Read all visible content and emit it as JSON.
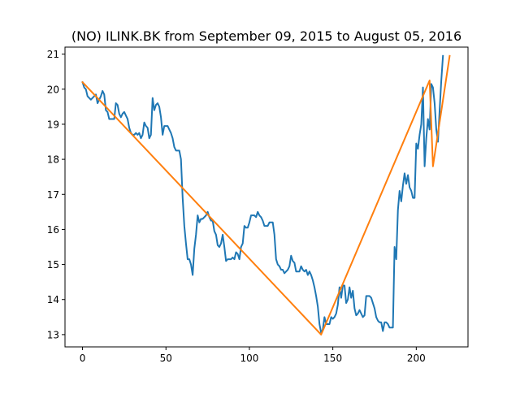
{
  "chart_data": {
    "type": "line",
    "title": "(NO) ILINK.BK from September 09, 2015 to August 05, 2016",
    "xlabel": "",
    "ylabel": "",
    "xlim": [
      -10.5,
      231
    ],
    "ylim": [
      12.65,
      21.2
    ],
    "xticks": [
      0,
      50,
      100,
      150,
      200
    ],
    "yticks": [
      13,
      14,
      15,
      16,
      17,
      18,
      19,
      20,
      21
    ],
    "grid": false,
    "legend": "none",
    "series": [
      {
        "color": "#1f77b4",
        "points": [
          [
            0,
            20.2
          ],
          [
            1,
            20.05
          ],
          [
            2,
            20.0
          ],
          [
            3,
            19.8
          ],
          [
            4,
            19.75
          ],
          [
            5,
            19.7
          ],
          [
            6,
            19.75
          ],
          [
            7,
            19.8
          ],
          [
            8,
            19.85
          ],
          [
            9,
            19.6
          ],
          [
            10,
            19.7
          ],
          [
            11,
            19.8
          ],
          [
            12,
            19.95
          ],
          [
            13,
            19.85
          ],
          [
            14,
            19.4
          ],
          [
            15,
            19.35
          ],
          [
            16,
            19.15
          ],
          [
            17,
            19.15
          ],
          [
            18,
            19.15
          ],
          [
            19,
            19.15
          ],
          [
            20,
            19.6
          ],
          [
            21,
            19.55
          ],
          [
            22,
            19.3
          ],
          [
            23,
            19.2
          ],
          [
            24,
            19.3
          ],
          [
            25,
            19.35
          ],
          [
            26,
            19.25
          ],
          [
            27,
            19.15
          ],
          [
            28,
            18.9
          ],
          [
            29,
            18.75
          ],
          [
            30,
            18.7
          ],
          [
            31,
            18.7
          ],
          [
            32,
            18.75
          ],
          [
            33,
            18.7
          ],
          [
            34,
            18.75
          ],
          [
            35,
            18.6
          ],
          [
            36,
            18.7
          ],
          [
            37,
            19.05
          ],
          [
            38,
            18.95
          ],
          [
            39,
            18.9
          ],
          [
            40,
            18.6
          ],
          [
            41,
            18.7
          ],
          [
            42,
            19.75
          ],
          [
            43,
            19.4
          ],
          [
            44,
            19.55
          ],
          [
            45,
            19.6
          ],
          [
            46,
            19.5
          ],
          [
            47,
            19.2
          ],
          [
            48,
            18.7
          ],
          [
            49,
            18.95
          ],
          [
            50,
            18.95
          ],
          [
            51,
            18.95
          ],
          [
            52,
            18.85
          ],
          [
            53,
            18.75
          ],
          [
            54,
            18.6
          ],
          [
            55,
            18.35
          ],
          [
            56,
            18.25
          ],
          [
            57,
            18.25
          ],
          [
            58,
            18.25
          ],
          [
            59,
            18.0
          ],
          [
            60,
            16.9
          ],
          [
            61,
            16.1
          ],
          [
            62,
            15.6
          ],
          [
            63,
            15.15
          ],
          [
            64,
            15.15
          ],
          [
            65,
            15.0
          ],
          [
            66,
            14.7
          ],
          [
            67,
            15.45
          ],
          [
            68,
            15.85
          ],
          [
            69,
            16.4
          ],
          [
            70,
            16.2
          ],
          [
            71,
            16.3
          ],
          [
            72,
            16.3
          ],
          [
            73,
            16.35
          ],
          [
            74,
            16.4
          ],
          [
            75,
            16.5
          ],
          [
            76,
            16.35
          ],
          [
            77,
            16.25
          ],
          [
            78,
            16.25
          ],
          [
            79,
            15.95
          ],
          [
            80,
            15.85
          ],
          [
            81,
            15.55
          ],
          [
            82,
            15.5
          ],
          [
            83,
            15.6
          ],
          [
            84,
            15.85
          ],
          [
            85,
            15.5
          ],
          [
            86,
            15.1
          ],
          [
            87,
            15.15
          ],
          [
            88,
            15.15
          ],
          [
            89,
            15.15
          ],
          [
            90,
            15.2
          ],
          [
            91,
            15.15
          ],
          [
            92,
            15.35
          ],
          [
            93,
            15.3
          ],
          [
            94,
            15.15
          ],
          [
            95,
            15.5
          ],
          [
            96,
            15.6
          ],
          [
            97,
            16.1
          ],
          [
            98,
            16.05
          ],
          [
            99,
            16.05
          ],
          [
            100,
            16.2
          ],
          [
            101,
            16.4
          ],
          [
            102,
            16.4
          ],
          [
            103,
            16.4
          ],
          [
            104,
            16.35
          ],
          [
            105,
            16.5
          ],
          [
            106,
            16.4
          ],
          [
            107,
            16.35
          ],
          [
            108,
            16.25
          ],
          [
            109,
            16.1
          ],
          [
            110,
            16.1
          ],
          [
            111,
            16.1
          ],
          [
            112,
            16.2
          ],
          [
            113,
            16.2
          ],
          [
            114,
            16.2
          ],
          [
            115,
            15.85
          ],
          [
            116,
            15.15
          ],
          [
            117,
            15.0
          ],
          [
            118,
            14.95
          ],
          [
            119,
            14.85
          ],
          [
            120,
            14.85
          ],
          [
            121,
            14.75
          ],
          [
            122,
            14.8
          ],
          [
            123,
            14.85
          ],
          [
            124,
            14.95
          ],
          [
            125,
            15.25
          ],
          [
            126,
            15.1
          ],
          [
            127,
            15.05
          ],
          [
            128,
            14.8
          ],
          [
            129,
            14.8
          ],
          [
            130,
            14.8
          ],
          [
            131,
            14.95
          ],
          [
            132,
            14.85
          ],
          [
            133,
            14.8
          ],
          [
            134,
            14.85
          ],
          [
            135,
            14.7
          ],
          [
            136,
            14.8
          ],
          [
            137,
            14.7
          ],
          [
            138,
            14.55
          ],
          [
            139,
            14.35
          ],
          [
            140,
            14.1
          ],
          [
            141,
            13.8
          ],
          [
            142,
            13.3
          ],
          [
            143,
            13.05
          ],
          [
            144,
            13.15
          ],
          [
            145,
            13.5
          ],
          [
            146,
            13.3
          ],
          [
            147,
            13.3
          ],
          [
            148,
            13.3
          ],
          [
            149,
            13.5
          ],
          [
            150,
            13.45
          ],
          [
            151,
            13.5
          ],
          [
            152,
            13.6
          ],
          [
            153,
            13.85
          ],
          [
            154,
            14.35
          ],
          [
            155,
            14.05
          ],
          [
            156,
            14.4
          ],
          [
            157,
            14.4
          ],
          [
            158,
            13.9
          ],
          [
            159,
            14.0
          ],
          [
            160,
            14.35
          ],
          [
            161,
            14.05
          ],
          [
            162,
            14.25
          ],
          [
            163,
            13.75
          ],
          [
            164,
            13.55
          ],
          [
            165,
            13.6
          ],
          [
            166,
            13.7
          ],
          [
            167,
            13.6
          ],
          [
            168,
            13.5
          ],
          [
            169,
            13.55
          ],
          [
            170,
            14.1
          ],
          [
            171,
            14.1
          ],
          [
            172,
            14.1
          ],
          [
            173,
            14.05
          ],
          [
            174,
            13.9
          ],
          [
            175,
            13.75
          ],
          [
            176,
            13.5
          ],
          [
            177,
            13.4
          ],
          [
            178,
            13.35
          ],
          [
            179,
            13.35
          ],
          [
            180,
            13.1
          ],
          [
            181,
            13.35
          ],
          [
            182,
            13.35
          ],
          [
            183,
            13.3
          ],
          [
            184,
            13.2
          ],
          [
            185,
            13.2
          ],
          [
            186,
            13.2
          ],
          [
            187,
            15.5
          ],
          [
            188,
            15.15
          ],
          [
            189,
            16.55
          ],
          [
            190,
            17.1
          ],
          [
            191,
            16.8
          ],
          [
            192,
            17.25
          ],
          [
            193,
            17.6
          ],
          [
            194,
            17.3
          ],
          [
            195,
            17.55
          ],
          [
            196,
            17.2
          ],
          [
            197,
            17.1
          ],
          [
            198,
            16.9
          ],
          [
            199,
            16.9
          ],
          [
            200,
            18.45
          ],
          [
            201,
            18.3
          ],
          [
            202,
            18.7
          ],
          [
            203,
            19.0
          ],
          [
            204,
            20.05
          ],
          [
            205,
            17.8
          ],
          [
            206,
            18.6
          ],
          [
            207,
            19.15
          ],
          [
            208,
            18.85
          ],
          [
            209,
            20.15
          ],
          [
            210,
            20.05
          ],
          [
            211,
            19.6
          ],
          [
            212,
            18.85
          ],
          [
            213,
            18.5
          ],
          [
            214,
            19.4
          ],
          [
            215,
            20.25
          ],
          [
            216,
            20.95
          ]
        ]
      },
      {
        "color": "#ff7f0e",
        "points": [
          [
            0,
            20.2
          ],
          [
            143,
            13.0
          ],
          [
            208,
            20.25
          ],
          [
            210,
            17.8
          ],
          [
            220,
            20.95
          ]
        ]
      }
    ]
  }
}
